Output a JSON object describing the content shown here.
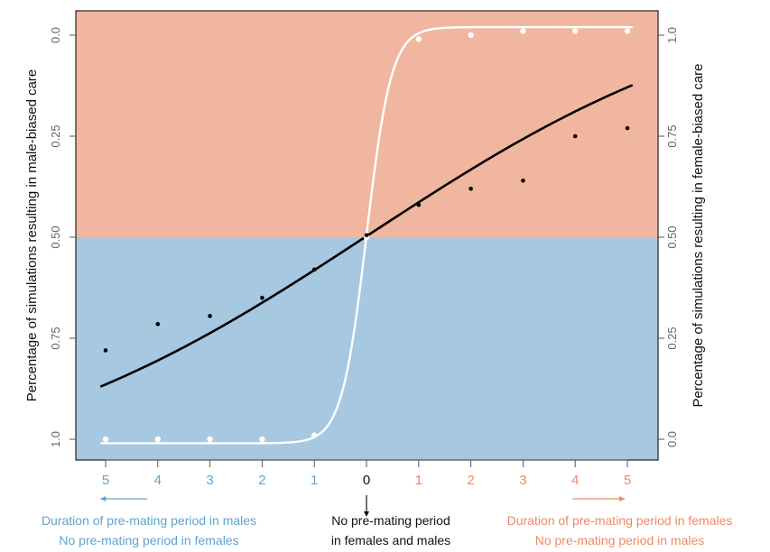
{
  "chart_data": {
    "type": "line",
    "ylabel_left": "Percentage of simulations resulting in male-biased care",
    "ylabel_right": "Percentage of simulations resulting in female-biased care",
    "x_tick_labels": [
      "5",
      "4",
      "3",
      "2",
      "1",
      "0",
      "1",
      "2",
      "3",
      "4",
      "5"
    ],
    "x_tick_values": [
      -5,
      -4,
      -3,
      -2,
      -1,
      0,
      1,
      2,
      3,
      4,
      5
    ],
    "xlim": [
      -5.5,
      5.5
    ],
    "left_axis": {
      "ticks": [
        "0.0",
        "0.25",
        "0.50",
        "0.75",
        "1.0"
      ],
      "tick_values": [
        0,
        0.25,
        0.5,
        0.75,
        1.0
      ],
      "direction": "reversed"
    },
    "right_axis": {
      "ticks": [
        "0.0",
        "0.25",
        "0.50",
        "0.75",
        "1.0"
      ],
      "tick_values": [
        0,
        0.25,
        0.5,
        0.75,
        1.0
      ]
    },
    "ylim": [
      0,
      1
    ],
    "regions": [
      {
        "name": "female-biased",
        "from": 0.5,
        "to": 1.0,
        "color": "#f1b6a0"
      },
      {
        "name": "male-biased",
        "from": 0.0,
        "to": 0.5,
        "color": "#a6c8e0"
      }
    ],
    "series": [
      {
        "color": "#ffffff",
        "x": [
          -5,
          -4,
          -3,
          -2,
          -1,
          0,
          1,
          2,
          3,
          4,
          5
        ],
        "values": [
          0.0,
          0.0,
          0.0,
          0.0,
          0.01,
          0.5,
          0.99,
          1.0,
          1.01,
          1.01,
          1.01
        ],
        "fit": "logistic-steep"
      },
      {
        "color": "#000000",
        "x": [
          -5,
          -4,
          -3,
          -2,
          -1,
          0,
          1,
          2,
          3,
          4,
          5
        ],
        "values": [
          0.22,
          0.285,
          0.305,
          0.35,
          0.42,
          0.505,
          0.58,
          0.62,
          0.64,
          0.75,
          0.77
        ],
        "fit": "logistic-shallow"
      }
    ]
  },
  "axis_colors": {
    "left_negative": "#5fa3cf",
    "right_positive": "#ee8a66",
    "zero": "#111111",
    "axis_text": "#666666"
  },
  "captions": {
    "male_line1": "Duration of pre-mating period in males",
    "male_line2": "No pre-mating period in females",
    "mid_line1": "No pre-mating period",
    "mid_line2": "in females and males",
    "female_line1": "Duration of pre-mating period in females",
    "female_line2": "No pre-mating period in males"
  }
}
